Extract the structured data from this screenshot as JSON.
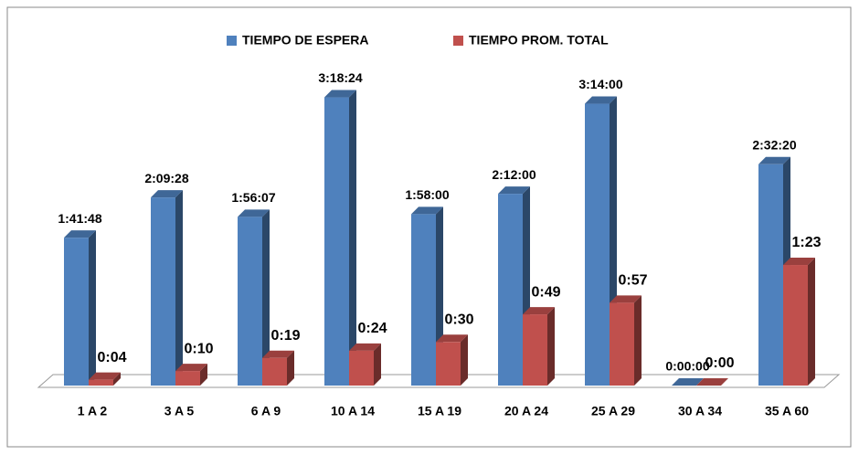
{
  "chart_data": {
    "type": "bar3d",
    "categories": [
      "1 A 2",
      "3 A 5",
      "6 A 9",
      "10 A 14",
      "15 A 19",
      "20 A 24",
      "25 A 29",
      "30 A 34",
      "35 A 60"
    ],
    "series": [
      {
        "name": "TIEMPO DE ESPERA",
        "color": "#4f81bd",
        "values": [
          101.8,
          129.47,
          116.12,
          198.4,
          118,
          132,
          194,
          0,
          152.33
        ],
        "value_labels": [
          "1:41:48",
          "2:09:28",
          "1:56:07",
          "3:18:24",
          "1:58:00",
          "2:12:00",
          "3:14:00",
          "0:00:00",
          "2:32:20"
        ]
      },
      {
        "name": "TIEMPO PROM. TOTAL",
        "color": "#c0504d",
        "values": [
          4,
          10,
          19,
          24,
          30,
          49,
          57,
          0,
          83
        ],
        "value_labels": [
          "0:04",
          "0:10",
          "0:19",
          "0:24",
          "0:30",
          "0:49",
          "0:57",
          "0:00",
          "1:23"
        ]
      }
    ],
    "legend": "top"
  }
}
